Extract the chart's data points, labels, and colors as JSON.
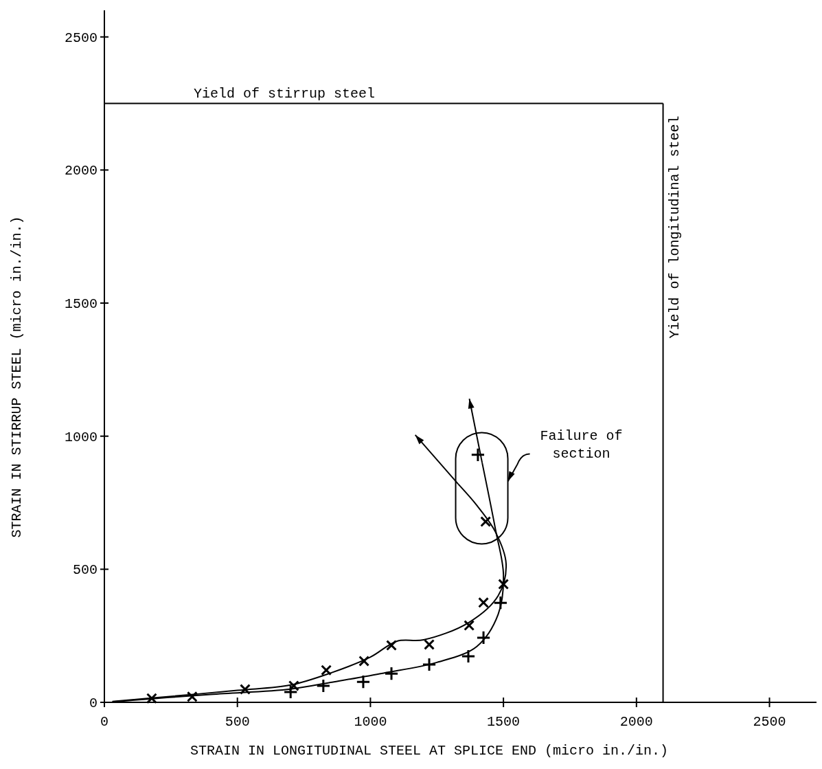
{
  "chart_data": {
    "type": "scatter",
    "xlabel": "STRAIN IN LONGITUDINAL STEEL AT SPLICE END (micro in./in.)",
    "ylabel": "STRAIN IN STIRRUP STEEL (micro in./in.)",
    "xlim": [
      0,
      2700
    ],
    "ylim": [
      0,
      2600
    ],
    "xticks": [
      0,
      500,
      1000,
      1500,
      2000,
      2500
    ],
    "yticks": [
      0,
      500,
      1000,
      1500,
      2000,
      2500
    ],
    "grid": false,
    "series": [
      {
        "marker": "cross",
        "color": "#000000",
        "x": [
          178,
          330,
          529,
          712,
          834,
          976,
          1079,
          1221,
          1371,
          1425,
          1500,
          1433
        ],
        "values": [
          15,
          21,
          49,
          62,
          121,
          155,
          214,
          217,
          289,
          375,
          444,
          679
        ]
      },
      {
        "marker": "plus",
        "color": "#000000",
        "x": [
          700,
          823,
          973,
          1079,
          1221,
          1368,
          1425,
          1489,
          1404
        ],
        "values": [
          39,
          62,
          77,
          108,
          142,
          173,
          243,
          374,
          930
        ]
      },
      {
        "type": "line",
        "marker": "none",
        "color": "#000000",
        "x": [
          30,
          200,
          500,
          700,
          850,
          1000,
          1100,
          1200,
          1370,
          1480,
          1510,
          1470,
          1400,
          1330
        ],
        "values": [
          3,
          18,
          45,
          65,
          110,
          170,
          230,
          235,
          300,
          400,
          520,
          640,
          740,
          820
        ]
      },
      {
        "type": "line",
        "marker": "none",
        "color": "#000000",
        "x": [
          30,
          400,
          700,
          850,
          1050,
          1250,
          1400,
          1480,
          1500,
          1470,
          1420
        ],
        "values": [
          2,
          30,
          50,
          75,
          110,
          150,
          210,
          330,
          480,
          650,
          900
        ]
      }
    ],
    "ref_lines": [
      {
        "axis": "y",
        "value": 2250,
        "label": "Yield of stirrup steel",
        "color": "#000000"
      },
      {
        "axis": "x",
        "value": 2100,
        "label": "Yield of longitudinal steel",
        "color": "#000000"
      }
    ],
    "annotations": [
      "Failure of section"
    ]
  }
}
